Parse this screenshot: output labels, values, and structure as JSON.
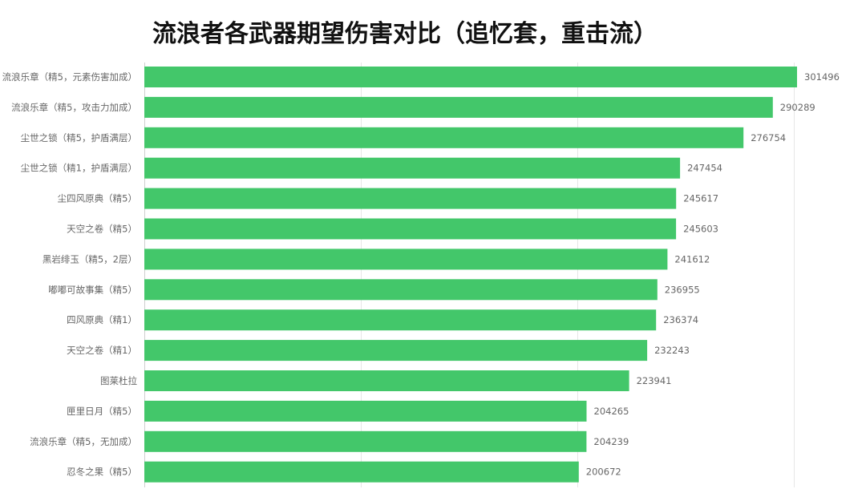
{
  "chart_data": {
    "type": "bar",
    "orientation": "horizontal",
    "title": "流浪者各武器期望伤害对比（追忆套，重击流）",
    "categories": [
      "流浪乐章（精5，元素伤害加成）",
      "流浪乐章（精5，攻击力加成）",
      "尘世之锁（精5，护盾满层）",
      "尘世之锁（精1，护盾满层）",
      "尘四风原典（精5）",
      "天空之卷（精5）",
      "黑岩绯玉（精5，2层）",
      "嘟嘟可故事集（精5）",
      "四风原典（精1）",
      "天空之卷（精1）",
      "图莱杜拉",
      "匣里日月（精5）",
      "流浪乐章（精5，无加成）",
      "忍冬之果（精5）"
    ],
    "values": [
      301496,
      290289,
      276754,
      247454,
      245617,
      245603,
      241612,
      236955,
      236374,
      232243,
      223941,
      204265,
      204239,
      200672
    ],
    "xlim": [
      0,
      300000
    ],
    "grid": true,
    "bar_color": "#43c76a",
    "gridline_color": "#e6e6e6",
    "label_color": "#666666",
    "title_color": "#111111"
  }
}
